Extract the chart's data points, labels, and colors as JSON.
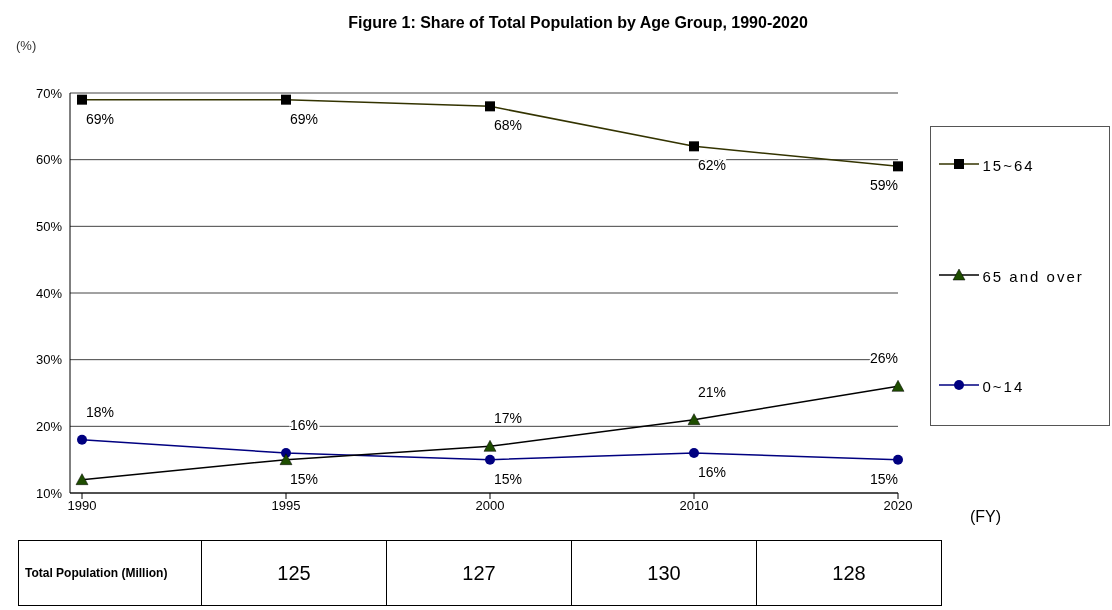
{
  "chart_data": {
    "type": "line",
    "title": "Figure 1: Share of Total Population by Age Group, 1990-2020",
    "ylabel": "(%)",
    "xlabel": "(FY)",
    "categories": [
      "1990",
      "1995",
      "2000",
      "2010",
      "2020"
    ],
    "series": [
      {
        "name": "15~64",
        "color": "#333300",
        "marker": "square",
        "values": [
          69,
          69,
          68,
          62,
          59
        ],
        "value_labels": [
          "69%",
          "69%",
          "68%",
          "62%",
          "59%"
        ]
      },
      {
        "name": "65 and over",
        "color": "#000000",
        "marker": "triangle",
        "values": [
          12,
          15,
          17,
          21,
          26
        ],
        "value_labels": [
          null,
          "15%",
          "17%",
          "21%",
          "26%"
        ]
      },
      {
        "name": "0~14",
        "color": "#000080",
        "marker": "circle",
        "values": [
          18,
          16,
          15,
          16,
          15
        ],
        "value_labels": [
          "18%",
          "16%",
          "15%",
          "16%",
          "15%"
        ]
      }
    ],
    "ylim": [
      10,
      70
    ],
    "yticks": [
      {
        "value": 10,
        "label": "10%"
      },
      {
        "value": 20,
        "label": "20%"
      },
      {
        "value": 30,
        "label": "30%"
      },
      {
        "value": 40,
        "label": "40%"
      },
      {
        "value": 50,
        "label": "50%"
      },
      {
        "value": 60,
        "label": "60%"
      },
      {
        "value": 70,
        "label": "70%"
      }
    ],
    "grid": "y",
    "legend": "right",
    "line_style": "solid",
    "annotations": [
      "Total Population (Million)",
      "125",
      "127",
      "130",
      "128"
    ]
  }
}
